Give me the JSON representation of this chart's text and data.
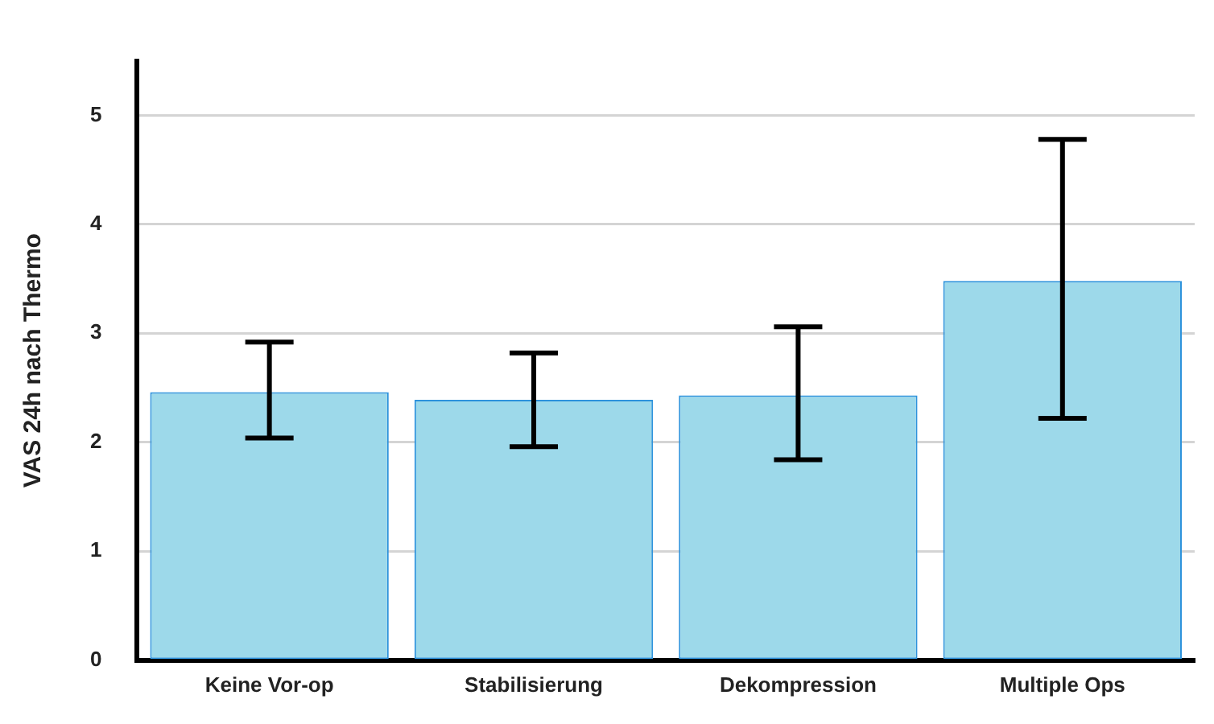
{
  "chart_data": {
    "type": "bar",
    "ylabel": "VAS 24h nach Thermo",
    "categories": [
      "Keine Vor-op",
      "Stabilisierung",
      "Dekompression",
      "Multiple Ops"
    ],
    "values": [
      2.46,
      2.39,
      2.43,
      3.48
    ],
    "errors": [
      [
        2.04,
        2.92
      ],
      [
        1.96,
        2.82
      ],
      [
        1.84,
        3.06
      ],
      [
        2.22,
        4.78
      ]
    ],
    "color": "#9dd9ea",
    "ylim": [
      0,
      5.5
    ],
    "yticks": [
      0,
      1,
      2,
      3,
      4,
      5
    ],
    "grid": "y",
    "legend": false
  }
}
